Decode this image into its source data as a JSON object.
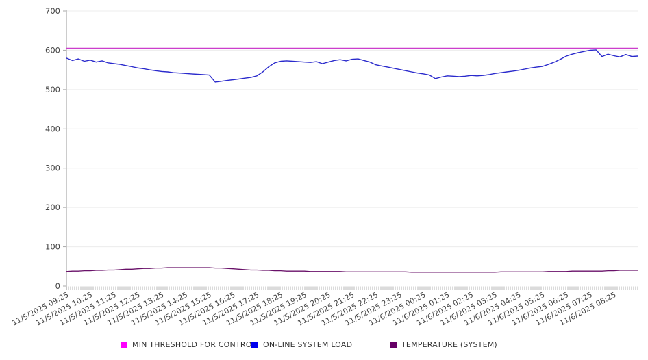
{
  "chart_data": {
    "type": "line",
    "title": "",
    "xlabel": "",
    "ylabel": "",
    "ylim": [
      0,
      700
    ],
    "y_ticks": [
      0,
      100,
      200,
      300,
      400,
      500,
      600,
      700
    ],
    "grid": "horizontal",
    "legend_position": "bottom",
    "x_minor_ticks": "every 5 minutes",
    "x_labels": [
      "11/5/2025 09:25",
      "11/5/2025 10:25",
      "11/5/2025 11:25",
      "11/5/2025 12:25",
      "11/5/2025 13:25",
      "11/5/2025 14:25",
      "11/5/2025 15:25",
      "11/5/2025 16:25",
      "11/5/2025 17:25",
      "11/5/2025 18:25",
      "11/5/2025 19:25",
      "11/5/2025 20:25",
      "11/5/2025 21:25",
      "11/5/2025 22:25",
      "11/5/2025 23:25",
      "11/6/2025 00:25",
      "11/6/2025 01:25",
      "11/6/2025 02:25",
      "11/6/2025 03:25",
      "11/6/2025 04:25",
      "11/6/2025 05:25",
      "11/6/2025 06:25",
      "11/6/2025 07:25",
      "11/6/2025 08:25"
    ],
    "series": [
      {
        "name": "MIN THRESHOLD FOR CONTROL",
        "line_color": "#cc3ecc",
        "swatch_color": "#ff00ff",
        "line_width": 1.8,
        "constant_value": 605
      },
      {
        "name": "ON-LINE SYSTEM LOAD",
        "line_color": "#2a2acc",
        "swatch_color": "#0000ee",
        "line_width": 1.4,
        "values": [
          580,
          574,
          578,
          572,
          575,
          570,
          573,
          568,
          566,
          564,
          561,
          558,
          555,
          553,
          550,
          548,
          546,
          545,
          543,
          542,
          541,
          540,
          539,
          538,
          537,
          519,
          521,
          523,
          525,
          527,
          529,
          531,
          535,
          545,
          558,
          568,
          572,
          573,
          572,
          571,
          570,
          569,
          571,
          566,
          570,
          574,
          576,
          573,
          577,
          578,
          574,
          570,
          563,
          560,
          557,
          554,
          551,
          548,
          545,
          542,
          540,
          537,
          528,
          532,
          535,
          534,
          533,
          534,
          536,
          535,
          536,
          538,
          541,
          543,
          545,
          547,
          549,
          552,
          555,
          557,
          559,
          564,
          570,
          577,
          585,
          590,
          594,
          597,
          600,
          601,
          584,
          590,
          586,
          583,
          589,
          584,
          585
        ]
      },
      {
        "name": "TEMPERATURE (SYSTEM)",
        "line_color": "#691169",
        "swatch_color": "#660066",
        "line_width": 1.3,
        "values": [
          37,
          38,
          38,
          39,
          39,
          40,
          40,
          41,
          41,
          42,
          43,
          43,
          44,
          45,
          45,
          46,
          46,
          47,
          47,
          47,
          47,
          47,
          47,
          47,
          47,
          46,
          46,
          45,
          44,
          43,
          42,
          41,
          41,
          40,
          40,
          39,
          39,
          38,
          38,
          38,
          38,
          37,
          37,
          37,
          37,
          37,
          37,
          36,
          36,
          36,
          36,
          36,
          36,
          36,
          36,
          36,
          36,
          36,
          35,
          35,
          35,
          35,
          35,
          35,
          35,
          35,
          35,
          35,
          35,
          35,
          35,
          35,
          35,
          36,
          36,
          36,
          36,
          36,
          36,
          36,
          36,
          37,
          37,
          37,
          37,
          38,
          38,
          38,
          38,
          38,
          38,
          39,
          39,
          40,
          40,
          40,
          40
        ]
      }
    ],
    "colors": {
      "grid": "#ececec",
      "axis": "#aaaaaa",
      "minor_ticks": "#999999",
      "tick_labels": "#444444",
      "legend_text": "#333333"
    }
  },
  "legend": {
    "items": [
      {
        "label": "MIN THRESHOLD FOR CONTROL"
      },
      {
        "label": "ON-LINE SYSTEM LOAD"
      },
      {
        "label": "TEMPERATURE (SYSTEM)"
      }
    ]
  }
}
